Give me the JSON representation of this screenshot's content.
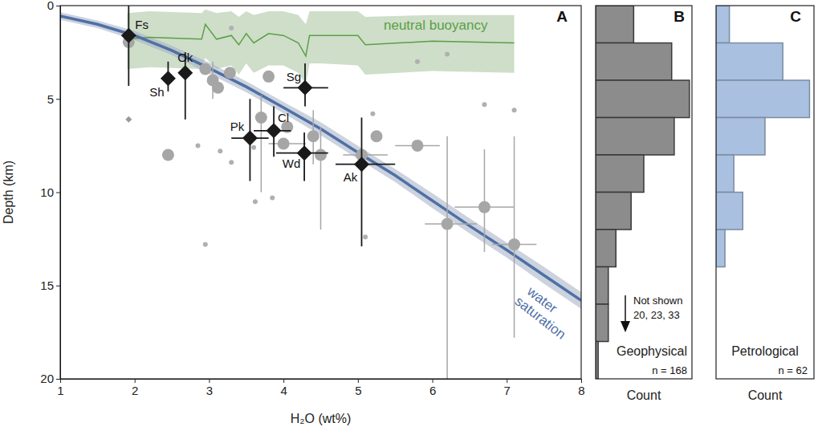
{
  "chart_data": [
    {
      "type": "scatter",
      "annotations": [
        "A"
      ],
      "x_label": "H₂O (wt%)",
      "y_label": "Depth (km)",
      "xlim": [
        1,
        8
      ],
      "xticks": [
        1,
        2,
        3,
        4,
        5,
        6,
        7,
        8
      ],
      "ylim": [
        0,
        20
      ],
      "yticks": [
        0,
        5,
        10,
        15,
        20
      ],
      "series": [
        {
          "type": "line",
          "label": "neutral buoyancy",
          "color": "#5b9f45",
          "x": [
            1.9,
            2.2,
            2.9,
            2.95,
            3.1,
            3.3,
            3.4,
            3.5,
            3.6,
            3.8,
            4.0,
            4.2,
            4.3,
            4.35,
            4.5,
            5.0,
            5.1,
            6.0,
            7.1
          ],
          "values": [
            1.8,
            1.7,
            1.8,
            1.0,
            1.8,
            1.6,
            2.1,
            1.5,
            2.0,
            1.5,
            1.6,
            2.0,
            2.7,
            1.6,
            1.6,
            1.6,
            2.1,
            1.9,
            2.0
          ],
          "band_upper": [
            0.4,
            0.3,
            0.4,
            0.2,
            0.4,
            0.3,
            0.6,
            0.3,
            0.5,
            0.3,
            0.3,
            0.5,
            1.0,
            0.3,
            0.3,
            0.3,
            0.6,
            0.5,
            0.5
          ],
          "band_lower": [
            3.4,
            3.3,
            3.4,
            2.8,
            3.4,
            3.2,
            3.7,
            3.1,
            3.6,
            3.2,
            3.2,
            3.6,
            4.2,
            3.1,
            3.1,
            3.2,
            3.7,
            3.5,
            3.6
          ]
        },
        {
          "type": "line",
          "label": "water saturation",
          "color": "#4f70a6",
          "x": [
            1,
            1.5,
            2,
            2.5,
            3,
            3.5,
            4,
            4.5,
            5,
            5.5,
            6,
            6.5,
            7,
            7.5,
            8
          ],
          "values": [
            0.56,
            1.0,
            1.6,
            2.4,
            3.35,
            4.35,
            5.46,
            6.6,
            7.87,
            9.1,
            10.45,
            11.8,
            13.1,
            14.45,
            15.8
          ],
          "band_upper": [
            0.36,
            0.8,
            1.35,
            2.15,
            3.05,
            4.05,
            5.16,
            6.25,
            7.52,
            8.75,
            10.05,
            11.4,
            12.7,
            14.0,
            15.35
          ],
          "band_lower": [
            0.76,
            1.2,
            1.85,
            2.65,
            3.65,
            4.65,
            5.76,
            6.95,
            8.22,
            9.45,
            10.85,
            12.2,
            13.5,
            14.9,
            16.25
          ]
        },
        {
          "type": "scatter",
          "marker": "dot",
          "color": "#b0b0b0",
          "x": [
            2.85,
            2.95,
            3.15,
            3.3,
            3.3,
            3.62,
            3.85,
            5.1,
            5.2,
            5.8,
            6.2,
            6.7,
            7.1,
            3.6
          ],
          "values": [
            7.5,
            12.8,
            7.8,
            1.2,
            8.4,
            10.5,
            10.3,
            12.4,
            5.8,
            3.0,
            2.6,
            5.3,
            5.6,
            7.6
          ]
        },
        {
          "type": "scatter",
          "marker": "small-diamond",
          "color": "#9a9a9a",
          "x": [
            1.92
          ],
          "values": [
            6.1
          ]
        },
        {
          "type": "scatter",
          "marker": "circle",
          "color": "#a6a6a6",
          "x": [
            1.92,
            2.45,
            2.95,
            3.05,
            3.12,
            3.28,
            3.7,
            3.8,
            4.0,
            4.05,
            4.4,
            4.5,
            5.05,
            5.25,
            5.8,
            6.2,
            6.7,
            7.1
          ],
          "values": [
            1.95,
            8.0,
            3.4,
            4.0,
            4.4,
            3.6,
            6.0,
            3.8,
            7.4,
            6.5,
            7.0,
            8.0,
            8.0,
            7.0,
            7.5,
            11.7,
            10.8,
            12.8
          ],
          "h2o_range": [
            null,
            null,
            null,
            null,
            null,
            null,
            null,
            null,
            [
              3.8,
              4.3
            ],
            null,
            null,
            null,
            [
              4.8,
              5.4
            ],
            null,
            [
              5.5,
              6.1
            ],
            [
              5.9,
              6.6
            ],
            [
              6.3,
              7.1
            ],
            [
              6.8,
              7.4
            ]
          ],
          "depth_range": [
            null,
            null,
            null,
            [
              3.0,
              5.0
            ],
            null,
            null,
            [
              4.8,
              10.0
            ],
            null,
            null,
            null,
            [
              5.6,
              8.5
            ],
            [
              6.5,
              12.0
            ],
            null,
            null,
            null,
            [
              7.0,
              20.0
            ],
            [
              7.7,
              13.2
            ],
            [
              7.0,
              17.8
            ]
          ]
        },
        {
          "type": "scatter",
          "marker": "diamond",
          "color": "#1a1a1a",
          "labels": [
            "Fs",
            "Sh",
            "Ok",
            "Sg",
            "Pk",
            "Cl",
            "Wd",
            "Ak"
          ],
          "x": [
            1.92,
            2.45,
            2.68,
            4.29,
            3.55,
            3.87,
            4.28,
            5.05
          ],
          "values": [
            1.6,
            3.9,
            3.6,
            4.4,
            7.1,
            6.7,
            7.9,
            8.5
          ],
          "h2o_range": [
            null,
            null,
            null,
            [
              4.0,
              4.6
            ],
            [
              3.3,
              3.8
            ],
            [
              3.6,
              4.1
            ],
            [
              3.9,
              4.6
            ],
            [
              4.7,
              5.5
            ]
          ],
          "depth_range": [
            [
              0,
              4.3
            ],
            [
              3.0,
              4.6
            ],
            [
              2.5,
              6.1
            ],
            [
              3.1,
              5.4
            ],
            [
              5.0,
              9.4
            ],
            [
              5.4,
              8.1
            ],
            [
              6.8,
              9.4
            ],
            [
              6.0,
              12.9
            ]
          ]
        }
      ]
    },
    {
      "type": "histogram",
      "orientation": "horizontal",
      "title": "Geophysical",
      "annotations": [
        "B",
        "Not shown",
        "20, 23, 33",
        "n = 168"
      ],
      "x_label": "Count",
      "bins": [
        0,
        2,
        4,
        6,
        8,
        10,
        12,
        14,
        16,
        18,
        20
      ],
      "values": [
        15,
        30,
        37,
        31,
        19,
        14,
        8,
        5,
        5,
        1
      ],
      "color": "#8c8c8c",
      "xlim": [
        0,
        38
      ],
      "ylim": [
        0,
        20
      ],
      "tick_labels": false
    },
    {
      "type": "histogram",
      "orientation": "horizontal",
      "title": "Petrological",
      "annotations": [
        "C",
        "n = 62"
      ],
      "x_label": "Count",
      "bins": [
        0,
        2,
        4,
        6,
        8,
        10,
        12,
        14
      ],
      "values": [
        3,
        15,
        21,
        11,
        4,
        6,
        2
      ],
      "color": "#a9c0e0",
      "xlim": [
        0,
        22
      ],
      "ylim": [
        0,
        20
      ],
      "tick_labels": false
    }
  ]
}
